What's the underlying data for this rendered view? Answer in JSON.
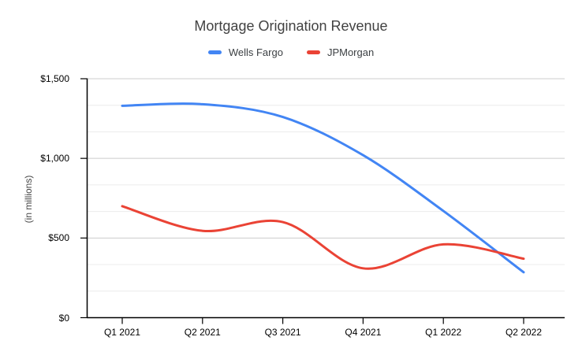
{
  "chart_data": {
    "type": "line",
    "smooth": true,
    "title": "Mortgage Origination Revenue",
    "ylabel": "(in millions)",
    "xlabel": "",
    "legend_position": "top",
    "categories": [
      "Q1 2021",
      "Q2 2021",
      "Q3 2021",
      "Q4 2021",
      "Q1 2022",
      "Q2 2022"
    ],
    "series": [
      {
        "name": "Wells Fargo",
        "color": "#4285f4",
        "values": [
          1330,
          1340,
          1260,
          1020,
          670,
          285
        ]
      },
      {
        "name": "JPMorgan",
        "color": "#ea4335",
        "values": [
          700,
          545,
          600,
          310,
          460,
          370
        ]
      }
    ],
    "ylim": [
      0,
      1500
    ],
    "y_ticks": [
      {
        "value": 0,
        "label": "$0"
      },
      {
        "value": 500,
        "label": "$500"
      },
      {
        "value": 1000,
        "label": "$1,000"
      },
      {
        "value": 1500,
        "label": "$1,500"
      }
    ],
    "grid": {
      "major_step": 500,
      "minor_lines_per_major": 2,
      "major_color": "#cccccc",
      "minor_color": "#ececec"
    },
    "axis_color": "#000000",
    "title_color": "#424242",
    "label_color": "#000000"
  }
}
